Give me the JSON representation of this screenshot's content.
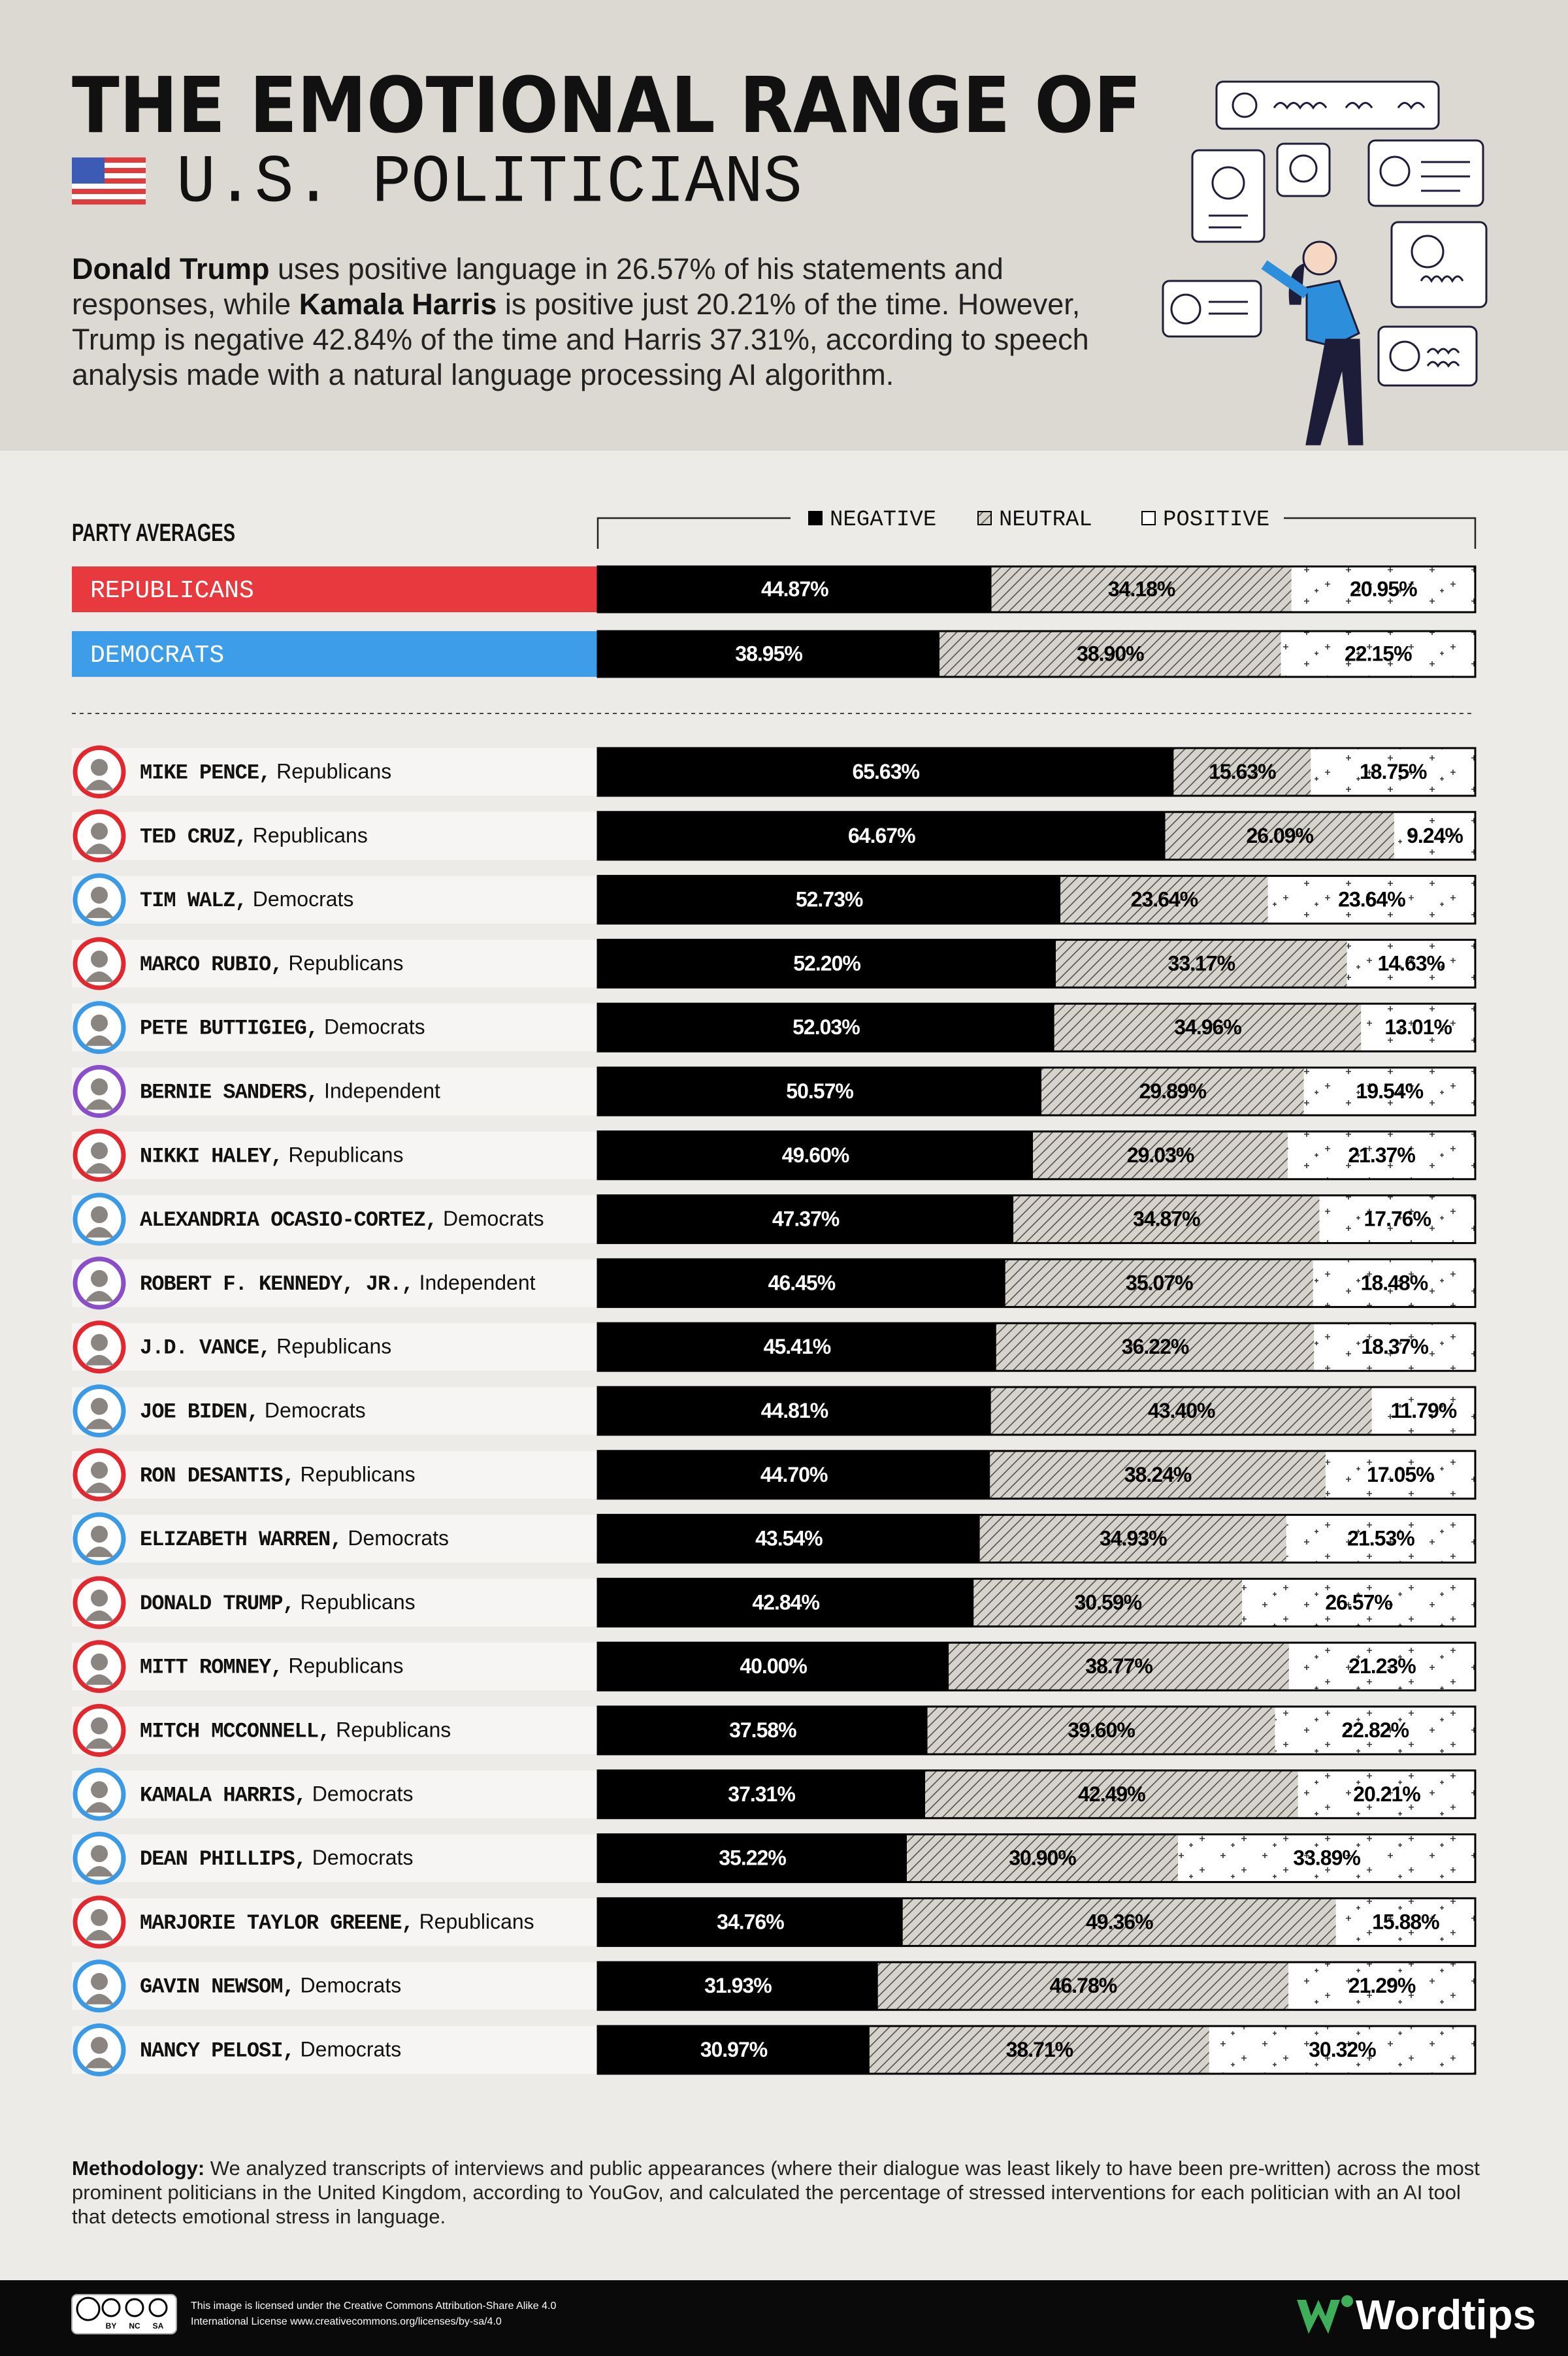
{
  "header": {
    "title": "THE EMOTIONAL RANGE OF",
    "subtitle": "U.S. POLITICIANS",
    "intro": [
      "Donald Trump",
      " uses positive language in 26.57% of his statements and responses, while ",
      "Kamala Harris",
      " is positive just 20.21% of the time. However, Trump is negative 42.84% of the time and Harris 37.31%, according to speech analysis made with a natural language processing AI algorithm."
    ]
  },
  "chart_data": [
    {
      "type": "stacked-bar",
      "title": "PARTY AVERAGES",
      "legend": "top",
      "categories": [
        "REPUBLICANS",
        "DEMOCRATS"
      ],
      "label_colors": [
        "#e8393f",
        "#3d9de8"
      ],
      "xlim": [
        0,
        100
      ],
      "series": [
        {
          "name": "NEGATIVE",
          "color": "#000000",
          "pattern": null,
          "label_color": "#ffffff",
          "values": [
            44.87,
            38.95
          ],
          "value_labels": [
            "44.87%",
            "38.95%"
          ]
        },
        {
          "name": "NEUTRAL",
          "color": "#d6d2cc",
          "pattern": "hatch",
          "label_color": "#000000",
          "values": [
            34.18,
            38.9
          ],
          "value_labels": [
            "34.18%",
            "38.90%"
          ]
        },
        {
          "name": "POSITIVE",
          "color": "#ffffff",
          "pattern": "plus",
          "label_color": "#000000",
          "values": [
            20.95,
            22.15
          ],
          "value_labels": [
            "20.95%",
            "22.15%"
          ]
        }
      ]
    },
    {
      "type": "stacked-bar",
      "categories": [
        "MIKE PENCE, Republicans",
        "TED CRUZ, Republicans",
        "TIM WALZ, Democrats",
        "MARCO RUBIO, Republicans",
        "PETE BUTTIGIEG, Democrats",
        "BERNIE SANDERS, Independent",
        "NIKKI HALEY, Republicans",
        "ALEXANDRIA OCASIO-CORTEZ, Democrats",
        "ROBERT F. KENNEDY, JR., Independent",
        "J.D. VANCE, Republicans",
        "JOE BIDEN, Democrats",
        "RON DESANTIS, Republicans",
        "ELIZABETH WARREN, Democrats",
        "DONALD TRUMP, Republicans",
        "MITT ROMNEY, Republicans",
        "MITCH MCCONNELL, Republicans",
        "KAMALA HARRIS, Democrats",
        "DEAN PHILLIPS, Democrats",
        "MARJORIE TAYLOR GREENE, Republicans",
        "GAVIN NEWSOM, Democrats",
        "NANCY PELOSI, Democrats"
      ],
      "marker_colors": [
        "#e0282e",
        "#e0282e",
        "#3a9ae6",
        "#e0282e",
        "#3a9ae6",
        "#8a4ec8",
        "#e0282e",
        "#3a9ae6",
        "#8a4ec8",
        "#e0282e",
        "#3a9ae6",
        "#e0282e",
        "#3a9ae6",
        "#e0282e",
        "#e0282e",
        "#e0282e",
        "#3a9ae6",
        "#3a9ae6",
        "#e0282e",
        "#3a9ae6",
        "#3a9ae6"
      ],
      "xlim": [
        0,
        100
      ],
      "series": [
        {
          "color": "#000000",
          "pattern": null,
          "label_color": "#ffffff",
          "values": [
            65.63,
            64.67,
            52.73,
            52.2,
            52.03,
            50.57,
            49.6,
            47.37,
            46.45,
            45.41,
            44.81,
            44.7,
            43.54,
            42.84,
            40.0,
            37.58,
            37.31,
            35.22,
            34.76,
            31.93,
            30.97
          ],
          "value_labels": [
            "65.63%",
            "64.67%",
            "52.73%",
            "52.20%",
            "52.03%",
            "50.57%",
            "49.60%",
            "47.37%",
            "46.45%",
            "45.41%",
            "44.81%",
            "44.70%",
            "43.54%",
            "42.84%",
            "40.00%",
            "37.58%",
            "37.31%",
            "35.22%",
            "34.76%",
            "31.93%",
            "30.97%"
          ]
        },
        {
          "color": "#d6d2cc",
          "pattern": "hatch",
          "label_color": "#000000",
          "values": [
            15.63,
            26.09,
            23.64,
            33.17,
            34.96,
            29.89,
            29.03,
            34.87,
            35.07,
            36.22,
            43.4,
            38.24,
            34.93,
            30.59,
            38.77,
            39.6,
            42.49,
            30.9,
            49.36,
            46.78,
            38.71
          ],
          "value_labels": [
            "15.63%",
            "26.09%",
            "23.64%",
            "33.17%",
            "34.96%",
            "29.89%",
            "29.03%",
            "34.87%",
            "35.07%",
            "36.22%",
            "43.40%",
            "38.24%",
            "34.93%",
            "30.59%",
            "38.77%",
            "39.60%",
            "42.49%",
            "30.90%",
            "49.36%",
            "46.78%",
            "38.71%"
          ]
        },
        {
          "color": "#ffffff",
          "pattern": "plus",
          "label_color": "#000000",
          "values": [
            18.75,
            9.24,
            23.64,
            14.63,
            13.01,
            19.54,
            21.37,
            17.76,
            18.48,
            18.37,
            11.79,
            17.05,
            21.53,
            26.57,
            21.23,
            22.82,
            20.21,
            33.89,
            15.88,
            21.29,
            30.32
          ],
          "value_labels": [
            "18.75%",
            "9.24%",
            "23.64%",
            "14.63%",
            "13.01%",
            "19.54%",
            "21.37%",
            "17.76%",
            "18.48%",
            "18.37%",
            "11.79%",
            "17.05%",
            "21.53%",
            "26.57%",
            "21.23%",
            "22.82%",
            "20.21%",
            "33.89%",
            "15.88%",
            "21.29%",
            "30.32%"
          ]
        }
      ]
    }
  ],
  "footer": {
    "methodology_label": "Methodology:",
    "methodology": " We analyzed transcripts of interviews and public appearances (where their dialogue was least likely to have been pre-written) across the most prominent politicians in the United Kingdom, according to YouGov, and calculated the percentage of stressed interventions for each politician with an AI tool that detects emotional stress in language.",
    "license": [
      "This image is licensed under the Creative Commons Attribution-Share Alike 4.0",
      "International License www.creativecommons.org/licenses/by-sa/4.0"
    ],
    "cc_labels": [
      "BY",
      "NC",
      "SA"
    ],
    "brand": "Wordtips"
  }
}
